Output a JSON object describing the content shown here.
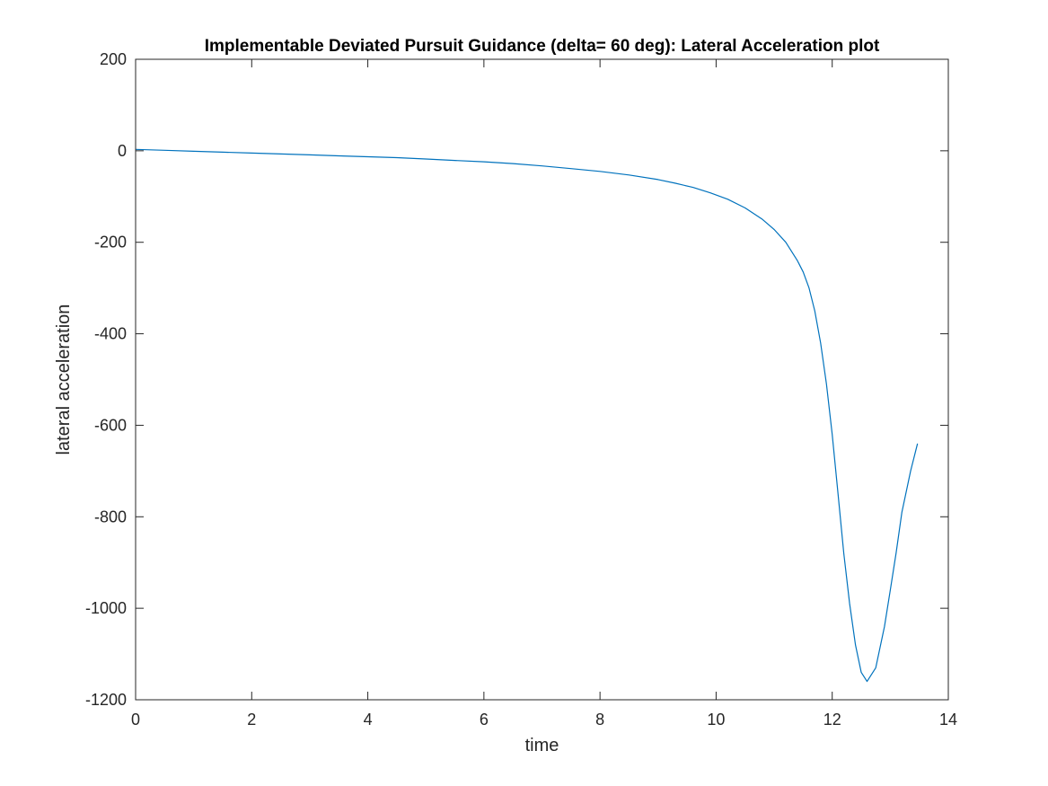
{
  "chart_data": {
    "type": "line",
    "title": "Implementable Deviated Pursuit Guidance (delta= 60 deg): Lateral Acceleration plot",
    "xlabel": "time",
    "ylabel": "lateral acceleration",
    "xlim": [
      0,
      14
    ],
    "ylim": [
      -1200,
      200
    ],
    "x_ticks": [
      0,
      2,
      4,
      6,
      8,
      10,
      12,
      14
    ],
    "y_ticks": [
      200,
      0,
      -200,
      -400,
      -600,
      -800,
      -1000,
      -1200
    ],
    "x_tick_labels": [
      "0",
      "2",
      "4",
      "6",
      "8",
      "10",
      "12",
      "14"
    ],
    "y_tick_labels": [
      "200",
      "0",
      "-200",
      "-400",
      "-600",
      "-800",
      "-1000",
      "-1200"
    ],
    "grid": false,
    "box": true,
    "series": [
      {
        "color": "#0072BD",
        "x": [
          0,
          0.5,
          1,
          1.5,
          2,
          2.5,
          3,
          3.5,
          4,
          4.5,
          5,
          5.5,
          6,
          6.5,
          7,
          7.5,
          8,
          8.5,
          9,
          9.3,
          9.6,
          9.9,
          10.2,
          10.5,
          10.8,
          11.0,
          11.2,
          11.4,
          11.5,
          11.6,
          11.7,
          11.8,
          11.9,
          12.0,
          12.1,
          12.2,
          12.3,
          12.4,
          12.5,
          12.6,
          12.75,
          12.9,
          13.0,
          13.1,
          13.2,
          13.35,
          13.47
        ],
        "y": [
          3,
          1,
          -1,
          -3,
          -5,
          -7,
          -9,
          -11,
          -13,
          -15,
          -18,
          -21,
          -24,
          -28,
          -33,
          -39,
          -45,
          -53,
          -63,
          -71,
          -80,
          -92,
          -106,
          -125,
          -150,
          -172,
          -200,
          -240,
          -265,
          -300,
          -350,
          -420,
          -510,
          -620,
          -750,
          -880,
          -990,
          -1080,
          -1140,
          -1160,
          -1130,
          -1040,
          -960,
          -880,
          -790,
          -700,
          -640
        ]
      }
    ]
  }
}
